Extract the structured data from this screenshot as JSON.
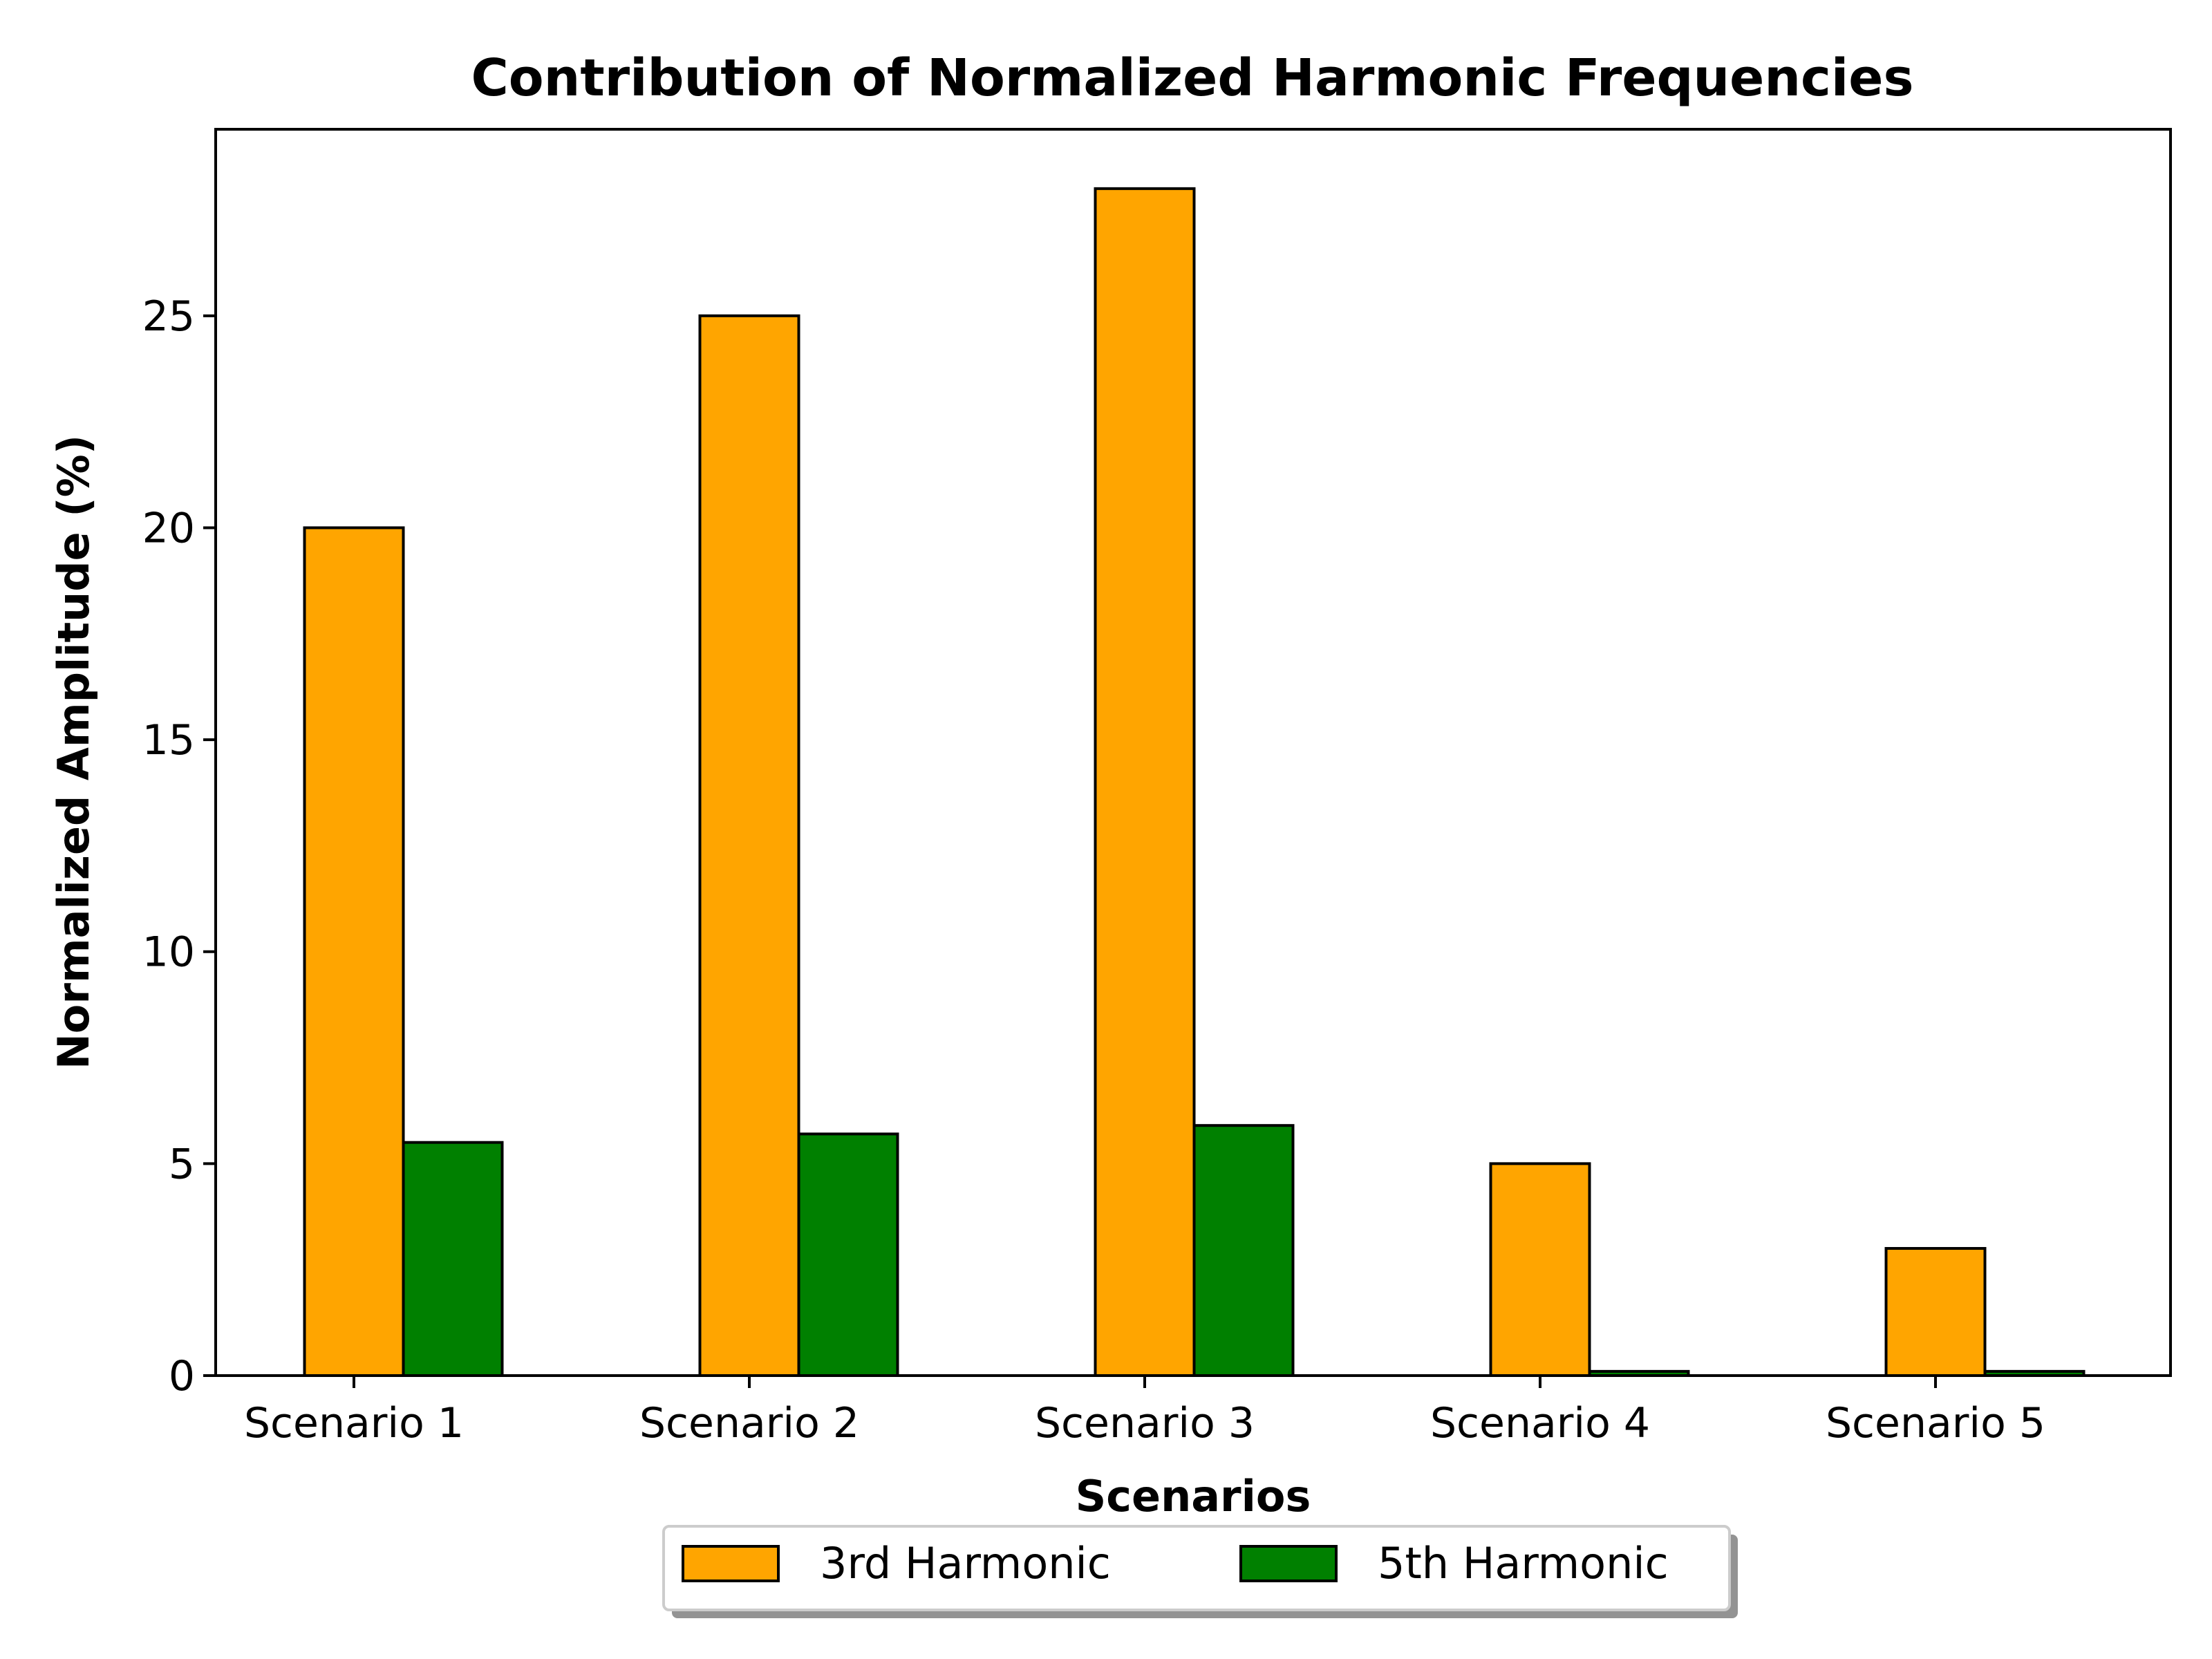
{
  "chart_data": {
    "type": "bar",
    "title": "Contribution of Normalized Harmonic Frequencies",
    "xlabel": "Scenarios",
    "ylabel": "Normalized Amplitude (%)",
    "categories": [
      "Scenario 1",
      "Scenario 2",
      "Scenario 3",
      "Scenario 4",
      "Scenario 5"
    ],
    "series": [
      {
        "name": "3rd Harmonic",
        "color": "#FFA500",
        "values": [
          20,
          25,
          28,
          5,
          3
        ]
      },
      {
        "name": "5th Harmonic",
        "color": "#008000",
        "values": [
          5.5,
          5.7,
          5.9,
          0.1,
          0.1
        ]
      }
    ],
    "ylim": [
      0,
      29.4
    ],
    "yticks": [
      "0",
      "5",
      "10",
      "15",
      "20",
      "25"
    ],
    "grid": false,
    "legend_position": "bottom-center"
  }
}
